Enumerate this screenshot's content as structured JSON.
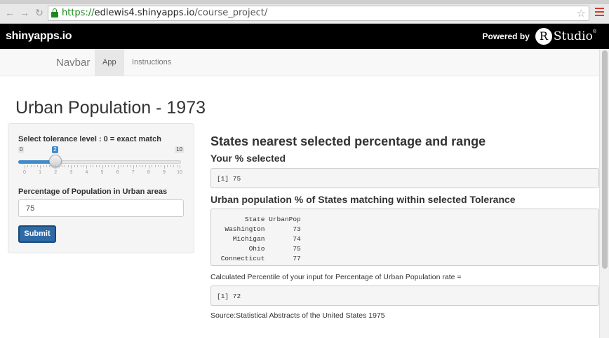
{
  "browser": {
    "url_scheme": "https://",
    "url_host": "edlewis4.shinyapps.io",
    "url_path": "/course_project/",
    "back_glyph": "←",
    "forward_glyph": "→",
    "reload_glyph": "↻",
    "star_glyph": "☆"
  },
  "header": {
    "brand": "shinyapps.io",
    "powered_by": "Powered by",
    "r_letter": "R",
    "studio": "Studio",
    "registered": "®"
  },
  "navbar": {
    "brand": "Navbar",
    "tabs": [
      {
        "label": "App",
        "active": true
      },
      {
        "label": "Instructions",
        "active": false
      }
    ]
  },
  "page": {
    "title": "Urban Population - 1973"
  },
  "sidebar": {
    "slider_label": "Select tolerance level : 0 = exact match",
    "slider_min": 0,
    "slider_max": 10,
    "slider_value": 2,
    "slider_min_label": "0",
    "slider_max_label": "10",
    "slider_value_label": "2",
    "tick_labels": [
      "0",
      "1",
      "2",
      "3",
      "4",
      "5",
      "6",
      "7",
      "8",
      "9",
      "10"
    ],
    "input_label": "Percentage of Population in Urban areas",
    "input_value": "75",
    "submit_label": "Submit"
  },
  "main": {
    "heading": "States nearest selected percentage and range",
    "selected_heading": "Your % selected",
    "selected_output": "[1] 75",
    "matching_heading": "Urban population % of States matching within selected Tolerance",
    "table_header": "       State UrbanPop",
    "table_rows": [
      "  Washington       73",
      "    Michigan       74",
      "        Ohio       75",
      " Connecticut       77"
    ],
    "percentile_label": "Calculated Percentile of your input for Percentage of Urban Population rate =",
    "percentile_output": "[1] 72",
    "source": "Source:Statistical Abstracts of the United States 1975"
  },
  "colors": {
    "accent": "#428bca",
    "submit": "#2f6aa5",
    "secure": "#1a8a1a",
    "menu": "#d43a2f"
  }
}
